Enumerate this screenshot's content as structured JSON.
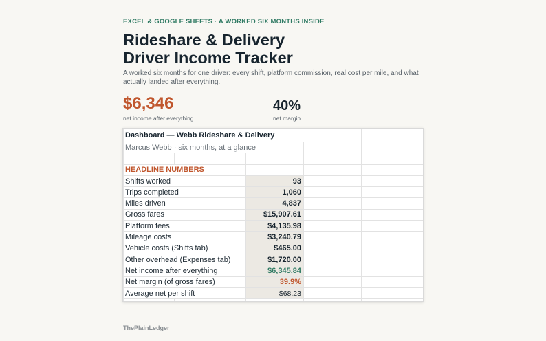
{
  "header": {
    "eyebrow": "EXCEL & GOOGLE SHEETS · A WORKED SIX MONTHS INSIDE",
    "title_line1": "Rideshare & Delivery",
    "title_line2": "Driver Income Tracker",
    "subtitle": "A worked six months for one driver: every shift, platform commission, real cost per mile, and what actually landed after everything."
  },
  "kpis": [
    {
      "value": "$6,346",
      "label": "net income after everything",
      "color": "#c0562d"
    },
    {
      "value": "40%",
      "label": "net margin",
      "color": "#17242e"
    }
  ],
  "sheet": {
    "title": "Dashboard — Webb Rideshare & Delivery",
    "subtitle": "Marcus Webb · six months, at a glance",
    "section": "HEADLINE NUMBERS",
    "rows": [
      {
        "label": "Shifts worked",
        "value": "93"
      },
      {
        "label": "Trips completed",
        "value": "1,060"
      },
      {
        "label": "Miles driven",
        "value": "4,837"
      },
      {
        "label": "Gross fares",
        "value": "$15,907.61"
      },
      {
        "label": "Platform fees",
        "value": "$4,135.98"
      },
      {
        "label": "Mileage costs",
        "value": "$3,240.79"
      },
      {
        "label": "Vehicle costs (Shifts tab)",
        "value": "$465.00"
      },
      {
        "label": "Other overhead (Expenses tab)",
        "value": "$1,720.00"
      },
      {
        "label": "Net income after everything",
        "value": "$6,345.84"
      },
      {
        "label": "Net margin (of gross fares)",
        "value": "39.9%"
      },
      {
        "label": "Average net per shift",
        "value": "$68.23"
      }
    ]
  },
  "colors": {
    "accent_orange": "#c0562d",
    "accent_green": "#2f7a63",
    "value_cell_bg": "#ece9e3",
    "page_bg": "#f8f7f3"
  },
  "footer": {
    "brand": "ThePlainLedger"
  }
}
